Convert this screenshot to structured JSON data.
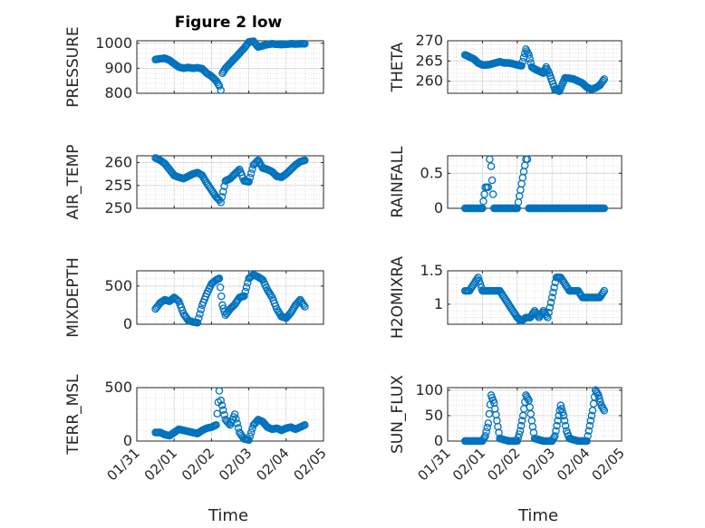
{
  "figure": {
    "title": "Figure 2 low",
    "xlabel": "Time",
    "x_tick_labels": [
      "01/31",
      "02/01",
      "02/02",
      "02/03",
      "02/04",
      "02/05"
    ],
    "marker_color": "#0072BD",
    "grid_color": "#d9d9d9",
    "axes_color": "#262626"
  },
  "chart_data": [
    {
      "type": "scatter",
      "ylabel": "PRESSURE",
      "ylim": [
        800,
        1010
      ],
      "yticks": [
        800,
        900,
        1000
      ],
      "grid": true,
      "x": [
        "01/31 12:00",
        "01/31 15:00",
        "01/31 18:00",
        "01/31 21:00",
        "02/01 00:00",
        "02/01 03:00",
        "02/01 06:00",
        "02/01 09:00",
        "02/01 12:00",
        "02/01 15:00",
        "02/01 18:00",
        "02/01 21:00",
        "02/02 00:00",
        "02/02 03:00",
        "02/02 05:00",
        "02/02 06:00",
        "02/02 07:00",
        "02/02 09:00",
        "02/02 12:00",
        "02/02 15:00",
        "02/02 18:00",
        "02/02 21:00",
        "02/03 00:00",
        "02/03 03:00",
        "02/03 06:00",
        "02/03 09:00",
        "02/03 12:00",
        "02/03 15:00",
        "02/03 18:00",
        "02/03 21:00",
        "02/04 00:00",
        "02/04 03:00",
        "02/04 06:00",
        "02/04 09:00",
        "02/04 12:00"
      ],
      "y": [
        935,
        938,
        940,
        932,
        918,
        905,
        900,
        903,
        900,
        902,
        898,
        880,
        868,
        850,
        830,
        812,
        880,
        900,
        920,
        940,
        960,
        980,
        1005,
        1008,
        985,
        990,
        995,
        998,
        996,
        995,
        996,
        998,
        997,
        998,
        998
      ]
    },
    {
      "type": "scatter",
      "ylabel": "THETA",
      "ylim": [
        257,
        270
      ],
      "yticks": [
        260,
        265,
        270
      ],
      "grid": true,
      "x": [
        "01/31 12:00",
        "01/31 15:00",
        "01/31 18:00",
        "01/31 21:00",
        "02/01 00:00",
        "02/01 03:00",
        "02/01 06:00",
        "02/01 09:00",
        "02/01 12:00",
        "02/01 15:00",
        "02/01 18:00",
        "02/01 21:00",
        "02/02 00:00",
        "02/02 03:00",
        "02/02 06:00",
        "02/02 08:00",
        "02/02 10:00",
        "02/02 12:00",
        "02/02 15:00",
        "02/02 18:00",
        "02/02 20:00",
        "02/02 22:00",
        "02/03 00:00",
        "02/03 02:00",
        "02/03 05:00",
        "02/03 09:00",
        "02/03 12:00",
        "02/03 15:00",
        "02/03 18:00",
        "02/03 21:00",
        "02/04 00:00",
        "02/04 03:00",
        "02/04 06:00",
        "02/04 09:00",
        "02/04 12:00"
      ],
      "y": [
        266.5,
        266,
        265.5,
        264.5,
        264,
        264,
        264.2,
        264.5,
        264.8,
        264.5,
        264.5,
        264.3,
        264,
        263.8,
        267.9,
        266.5,
        263.5,
        263,
        262.5,
        262,
        263.5,
        262,
        260,
        258,
        257.5,
        260.8,
        260.7,
        260.5,
        260,
        259.5,
        258.5,
        258,
        258.3,
        259,
        260.5
      ]
    },
    {
      "type": "scatter",
      "ylabel": "AIR_TEMP",
      "ylim": [
        250,
        261.5
      ],
      "yticks": [
        250,
        255,
        260
      ],
      "grid": true,
      "x": [
        "01/31 12:00",
        "01/31 15:00",
        "01/31 18:00",
        "01/31 21:00",
        "02/01 00:00",
        "02/01 03:00",
        "02/01 06:00",
        "02/01 09:00",
        "02/01 12:00",
        "02/01 15:00",
        "02/01 18:00",
        "02/01 21:00",
        "02/02 00:00",
        "02/02 03:00",
        "02/02 05:00",
        "02/02 06:00",
        "02/02 09:00",
        "02/02 12:00",
        "02/02 15:00",
        "02/02 18:00",
        "02/02 21:00",
        "02/03 00:00",
        "02/03 03:00",
        "02/03 06:00",
        "02/03 09:00",
        "02/03 12:00",
        "02/03 15:00",
        "02/03 18:00",
        "02/03 21:00",
        "02/04 00:00",
        "02/04 03:00",
        "02/04 06:00",
        "02/04 09:00",
        "02/04 12:00"
      ],
      "y": [
        261,
        260.5,
        259.8,
        258.5,
        257.2,
        256.8,
        256.5,
        257,
        257.5,
        257.8,
        257.2,
        255.5,
        254,
        252.5,
        251.8,
        251.3,
        256,
        256.5,
        257.5,
        258.5,
        256,
        255.8,
        259.5,
        260.5,
        258.8,
        258.5,
        258,
        257,
        256.8,
        257.5,
        258.5,
        259.5,
        260.2,
        260.5
      ]
    },
    {
      "type": "scatter",
      "ylabel": "RAINFALL",
      "ylim": [
        0,
        0.75
      ],
      "yticks": [
        0,
        0.5
      ],
      "grid": true,
      "x": [
        "01/31 12:00",
        "01/31 18:00",
        "02/01 00:00",
        "02/01 02:00",
        "02/01 03:00",
        "02/01 04:00",
        "02/01 05:00",
        "02/01 06:00",
        "02/01 08:00",
        "02/01 12:00",
        "02/01 18:00",
        "02/02 00:00",
        "02/02 06:00",
        "02/02 07:00",
        "02/02 08:00",
        "02/02 12:00",
        "02/02 18:00",
        "02/03 00:00",
        "02/03 06:00",
        "02/03 12:00",
        "02/03 18:00",
        "02/04 00:00",
        "02/04 06:00",
        "02/04 12:00"
      ],
      "y": [
        0,
        0,
        0,
        0.3,
        0.3,
        0.3,
        0.7,
        0.6,
        0,
        0,
        0,
        0,
        0.7,
        0.7,
        0,
        0,
        0,
        0,
        0,
        0,
        0,
        0,
        0,
        0
      ]
    },
    {
      "type": "scatter",
      "ylabel": "MIXDEPTH",
      "ylim": [
        0,
        700
      ],
      "yticks": [
        0,
        500
      ],
      "grid": true,
      "x": [
        "01/31 12:00",
        "01/31 15:00",
        "01/31 18:00",
        "01/31 21:00",
        "02/01 00:00",
        "02/01 03:00",
        "02/01 06:00",
        "02/01 09:00",
        "02/01 12:00",
        "02/01 15:00",
        "02/01 18:00",
        "02/01 21:00",
        "02/02 00:00",
        "02/02 03:00",
        "02/02 05:00",
        "02/02 07:00",
        "02/02 09:00",
        "02/02 12:00",
        "02/02 15:00",
        "02/02 18:00",
        "02/02 21:00",
        "02/03 00:00",
        "02/03 03:00",
        "02/03 06:00",
        "02/03 09:00",
        "02/03 12:00",
        "02/03 15:00",
        "02/03 18:00",
        "02/03 21:00",
        "02/04 00:00",
        "02/04 03:00",
        "02/04 06:00",
        "02/04 09:00",
        "02/04 12:00"
      ],
      "y": [
        200,
        280,
        320,
        300,
        350,
        300,
        140,
        50,
        30,
        20,
        250,
        400,
        530,
        580,
        600,
        250,
        120,
        200,
        260,
        350,
        370,
        600,
        650,
        620,
        580,
        450,
        350,
        200,
        100,
        80,
        150,
        250,
        320,
        230
      ]
    },
    {
      "type": "scatter",
      "ylabel": "H2OMIXRA",
      "ylim": [
        0.7,
        1.5
      ],
      "yticks": [
        1,
        1.5
      ],
      "grid": true,
      "x": [
        "01/31 12:00",
        "01/31 15:00",
        "01/31 18:00",
        "01/31 21:00",
        "02/01 00:00",
        "02/01 03:00",
        "02/01 06:00",
        "02/01 09:00",
        "02/01 12:00",
        "02/01 15:00",
        "02/01 18:00",
        "02/01 21:00",
        "02/02 00:00",
        "02/02 03:00",
        "02/02 06:00",
        "02/02 09:00",
        "02/02 12:00",
        "02/02 15:00",
        "02/02 18:00",
        "02/02 21:00",
        "02/03 00:00",
        "02/03 03:00",
        "02/03 06:00",
        "02/03 09:00",
        "02/03 12:00",
        "02/03 15:00",
        "02/03 18:00",
        "02/03 21:00",
        "02/04 00:00",
        "02/04 03:00",
        "02/04 06:00",
        "02/04 09:00",
        "02/04 12:00"
      ],
      "y": [
        1.2,
        1.2,
        1.3,
        1.4,
        1.2,
        1.2,
        1.2,
        1.2,
        1.2,
        1.1,
        1.0,
        0.9,
        0.8,
        0.75,
        0.8,
        0.8,
        0.9,
        0.8,
        0.9,
        0.8,
        1.1,
        1.4,
        1.4,
        1.3,
        1.2,
        1.2,
        1.2,
        1.1,
        1.1,
        1.1,
        1.1,
        1.1,
        1.2
      ]
    },
    {
      "type": "scatter",
      "ylabel": "TERR_MSL",
      "ylim": [
        0,
        500
      ],
      "yticks": [
        0,
        500
      ],
      "grid": true,
      "x": [
        "01/31 12:00",
        "01/31 15:00",
        "01/31 18:00",
        "01/31 21:00",
        "02/01 00:00",
        "02/01 03:00",
        "02/01 06:00",
        "02/01 09:00",
        "02/01 12:00",
        "02/01 15:00",
        "02/01 18:00",
        "02/01 21:00",
        "02/02 00:00",
        "02/02 03:00",
        "02/02 05:00",
        "02/02 06:00",
        "02/02 09:00",
        "02/02 12:00",
        "02/02 15:00",
        "02/02 18:00",
        "02/02 21:00",
        "02/03 00:00",
        "02/03 03:00",
        "02/03 06:00",
        "02/03 09:00",
        "02/03 12:00",
        "02/03 15:00",
        "02/03 18:00",
        "02/03 21:00",
        "02/04 00:00",
        "02/04 03:00",
        "02/04 06:00",
        "02/04 09:00",
        "02/04 12:00"
      ],
      "y": [
        80,
        80,
        60,
        50,
        80,
        110,
        100,
        90,
        80,
        70,
        100,
        120,
        130,
        150,
        470,
        380,
        200,
        150,
        250,
        80,
        20,
        10,
        150,
        200,
        180,
        130,
        110,
        120,
        100,
        120,
        130,
        110,
        130,
        150
      ]
    },
    {
      "type": "scatter",
      "ylabel": "SUN_FLUX",
      "ylim": [
        0,
        105
      ],
      "yticks": [
        0,
        50,
        100
      ],
      "grid": true,
      "x": [
        "01/31 12:00",
        "01/31 18:00",
        "02/01 00:00",
        "02/01 02:00",
        "02/01 04:00",
        "02/01 06:00",
        "02/01 08:00",
        "02/01 10:00",
        "02/01 12:00",
        "02/01 18:00",
        "02/02 00:00",
        "02/02 02:00",
        "02/02 04:00",
        "02/02 06:00",
        "02/02 08:00",
        "02/02 10:00",
        "02/02 12:00",
        "02/02 18:00",
        "02/03 00:00",
        "02/03 02:00",
        "02/03 04:00",
        "02/03 06:00",
        "02/03 08:00",
        "02/03 10:00",
        "02/03 12:00",
        "02/03 18:00",
        "02/04 00:00",
        "02/04 02:00",
        "02/04 04:00",
        "02/04 06:00",
        "02/04 08:00",
        "02/04 10:00",
        "02/04 12:00"
      ],
      "y": [
        0,
        0,
        0,
        10,
        35,
        90,
        75,
        40,
        5,
        0,
        0,
        20,
        50,
        90,
        80,
        40,
        5,
        0,
        0,
        10,
        40,
        70,
        50,
        20,
        5,
        0,
        0,
        30,
        60,
        100,
        90,
        70,
        60
      ]
    }
  ]
}
